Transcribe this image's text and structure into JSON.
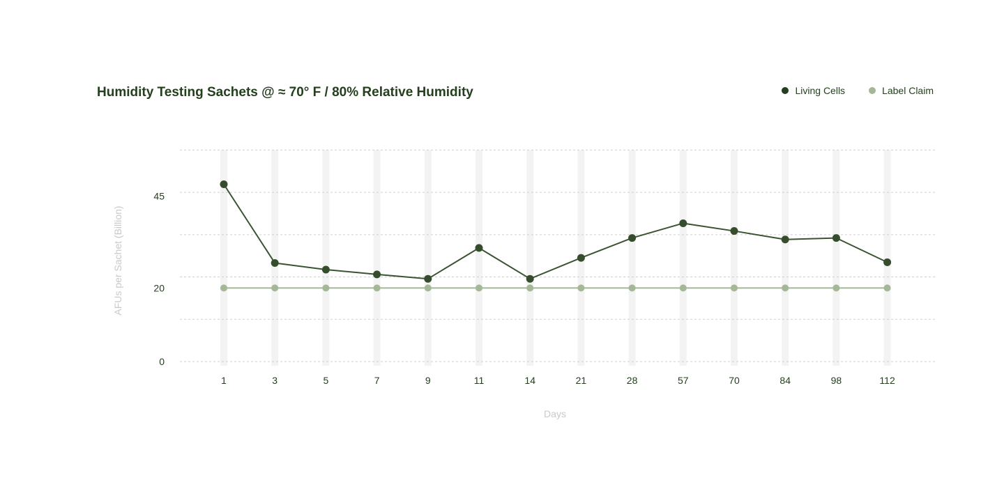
{
  "chart_data": {
    "type": "line",
    "title": "Humidity Testing Sachets @ ≈ 70° F / 80% Relative Humidity",
    "xlabel": "Days",
    "ylabel": "AFUs per Sachet (Billion)",
    "categories": [
      "1",
      "3",
      "5",
      "7",
      "9",
      "11",
      "14",
      "21",
      "28",
      "57",
      "70",
      "84",
      "98",
      "112"
    ],
    "ylim": [
      0,
      57.5
    ],
    "yticks": [
      0,
      20,
      45
    ],
    "grid": true,
    "legend_position": "top-right",
    "series": [
      {
        "name": "Living Cells",
        "color": "#3a5331",
        "values": [
          48.2,
          26.8,
          25.0,
          23.7,
          22.5,
          30.9,
          22.5,
          28.2,
          33.6,
          37.6,
          35.5,
          33.2,
          33.6,
          27.0
        ]
      },
      {
        "name": "Label Claim",
        "color": "#a4b896",
        "values": [
          20,
          20,
          20,
          20,
          20,
          20,
          20,
          20,
          20,
          20,
          20,
          20,
          20,
          20
        ]
      }
    ]
  }
}
